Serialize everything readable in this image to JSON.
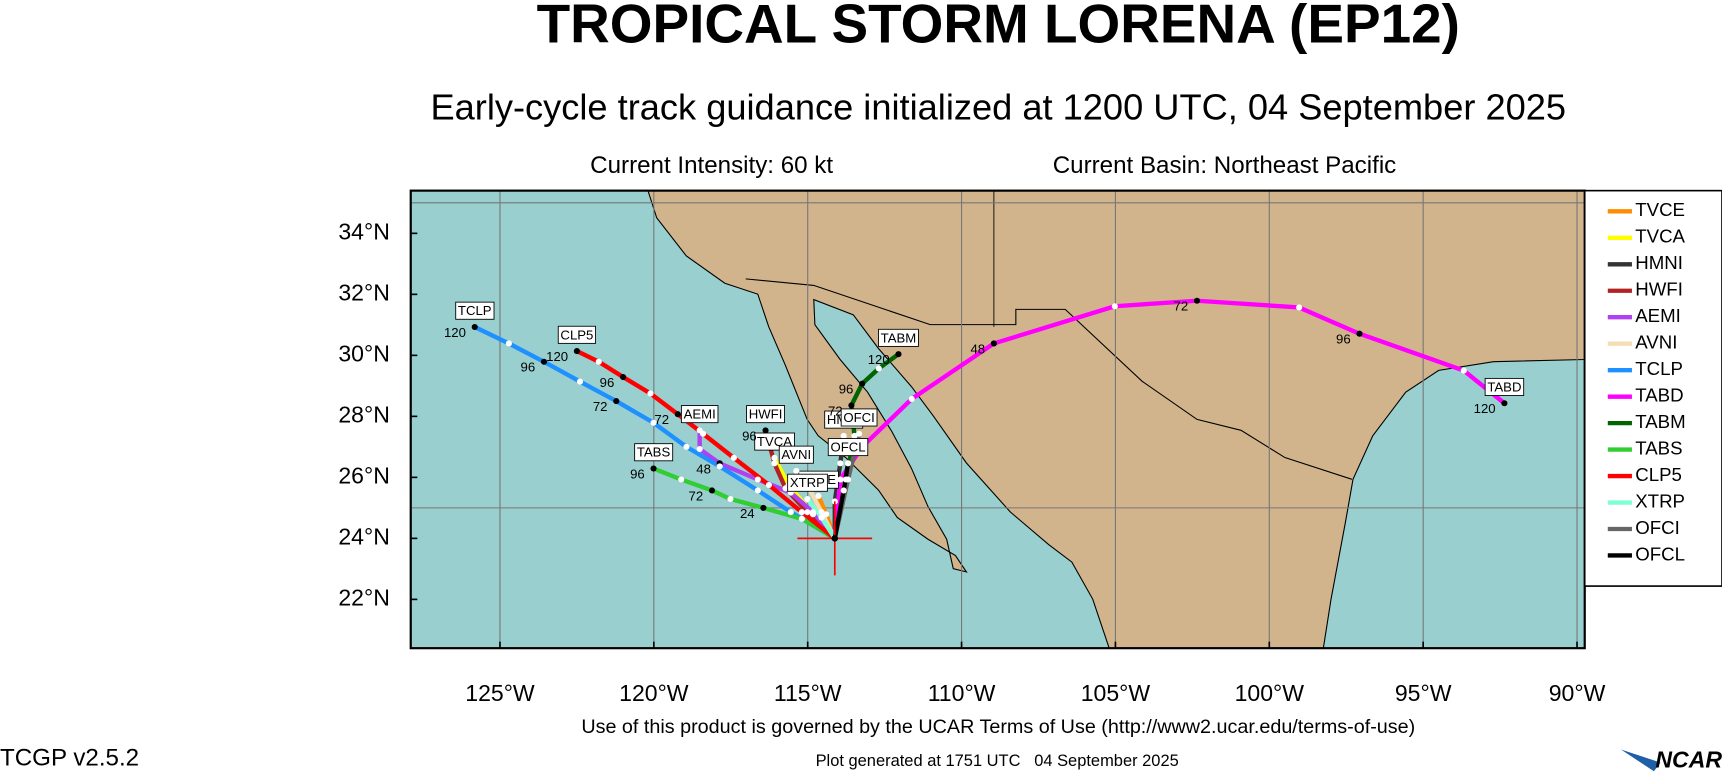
{
  "header": {
    "title": "TROPICAL STORM LORENA (EP12)",
    "subtitle": "Early-cycle track guidance initialized at 1200 UTC, 04 September 2025",
    "intensity": "Current Intensity: 60 kt",
    "basin": "Current Basin: Northeast Pacific"
  },
  "footer": {
    "terms": "Use of this product is governed by the UCAR Terms of Use (http://www2.ucar.edu/terms-of-use)",
    "version": "TCGP v2.5.2",
    "generated": "Plot generated at 1751 UTC   04 September 2025",
    "logo": "NCAR"
  },
  "chart_data": {
    "type": "track-map",
    "xlim": [
      -127.9,
      -89.75
    ],
    "ylim": [
      20.4,
      35.4
    ],
    "xticks": [
      {
        "value": -125,
        "label": "125°W"
      },
      {
        "value": -120,
        "label": "120°W"
      },
      {
        "value": -115,
        "label": "115°W"
      },
      {
        "value": -110,
        "label": "110°W"
      },
      {
        "value": -105,
        "label": "105°W"
      },
      {
        "value": -100,
        "label": "100°W"
      },
      {
        "value": -95,
        "label": "95°W"
      },
      {
        "value": -90,
        "label": "90°W"
      }
    ],
    "yticks": [
      {
        "value": 22,
        "label": "22°N"
      },
      {
        "value": 24,
        "label": "24°N"
      },
      {
        "value": 26,
        "label": "26°N"
      },
      {
        "value": 28,
        "label": "28°N"
      },
      {
        "value": 30,
        "label": "30°N"
      },
      {
        "value": 32,
        "label": "32°N"
      },
      {
        "value": 34,
        "label": "34°N"
      }
    ],
    "lat_grid": [
      25,
      35
    ],
    "grid": true,
    "storm_position": {
      "lon": -114.12,
      "lat": 24.0,
      "color": "#ff0000"
    },
    "legend": "right",
    "series": [
      {
        "name": "TVCE",
        "color": "#ff8c00",
        "lon": [
          -114.12,
          -114.4,
          -114.65
        ],
        "lat": [
          24.0,
          24.79,
          25.39
        ],
        "hour_labels": [
          null,
          null,
          null
        ]
      },
      {
        "name": "TVCA",
        "color": "#ffff00",
        "lon": [
          -114.12,
          -114.83,
          -115.62,
          -116.08
        ],
        "lat": [
          24.0,
          24.79,
          25.75,
          26.64
        ],
        "hour_labels": [
          null,
          null,
          null,
          null
        ]
      },
      {
        "name": "HMNI",
        "color": "#333333",
        "lon": [
          -114.12,
          -114.12,
          -113.94,
          -113.83
        ],
        "lat": [
          24.0,
          25.21,
          26.46,
          27.36
        ],
        "hour_labels": [
          null,
          null,
          null,
          null
        ]
      },
      {
        "name": "HWFI",
        "color": "#b22222",
        "lon": [
          -114.12,
          -115.01,
          -115.72,
          -116.08,
          -116.37
        ],
        "lat": [
          24.0,
          24.86,
          25.64,
          26.46,
          27.54
        ],
        "hour_labels": [
          null,
          null,
          null,
          null,
          96
        ]
      },
      {
        "name": "AEMI",
        "color": "#b040f0",
        "lon": [
          -114.12,
          -114.83,
          -115.55,
          -116.62,
          -117.86,
          -118.51,
          -118.51
        ],
        "lat": [
          24.0,
          24.86,
          25.5,
          25.93,
          26.46,
          26.93,
          27.54
        ],
        "hour_labels": [
          null,
          null,
          null,
          null,
          48,
          null,
          null
        ]
      },
      {
        "name": "AVNI",
        "color": "#f5deb3",
        "lon": [
          -114.12,
          -114.55,
          -115.01,
          -115.37
        ],
        "lat": [
          24.0,
          24.86,
          25.75,
          26.21
        ],
        "hour_labels": [
          null,
          null,
          null,
          null
        ]
      },
      {
        "name": "TCLP",
        "color": "#1e90ff",
        "lon": [
          -114.12,
          -115.55,
          -116.62,
          -117.86,
          -118.94,
          -120.01,
          -121.22,
          -122.4,
          -123.57,
          -124.71,
          -125.82
        ],
        "lat": [
          24.0,
          24.86,
          25.57,
          26.36,
          27.0,
          27.79,
          28.5,
          29.14,
          29.79,
          30.39,
          30.93
        ],
        "hour_labels": [
          null,
          null,
          null,
          null,
          null,
          null,
          72,
          null,
          96,
          null,
          120
        ]
      },
      {
        "name": "TABD",
        "color": "#ff00ff",
        "lon": [
          -114.12,
          -113.94,
          -113.23,
          -111.62,
          -108.95,
          -105.02,
          -102.35,
          -99.03,
          -97.07,
          -93.68,
          -92.36
        ],
        "lat": [
          24.0,
          25.93,
          27.0,
          28.57,
          30.39,
          31.61,
          31.79,
          31.57,
          30.71,
          29.5,
          28.43
        ],
        "hour_labels": [
          null,
          null,
          null,
          null,
          48,
          null,
          72,
          null,
          96,
          null,
          120
        ]
      },
      {
        "name": "TABM",
        "color": "#006400",
        "lon": [
          -114.12,
          -113.76,
          -113.48,
          -113.58,
          -113.23,
          -112.69,
          -112.05
        ],
        "lat": [
          24.0,
          25.93,
          27.36,
          28.36,
          29.07,
          29.57,
          30.04
        ],
        "hour_labels": [
          null,
          null,
          null,
          72,
          96,
          null,
          120
        ]
      },
      {
        "name": "TABS",
        "color": "#32cd32",
        "lon": [
          -114.12,
          -115.19,
          -116.44,
          -117.51,
          -118.11,
          -119.11,
          -120.01
        ],
        "lat": [
          24.0,
          24.64,
          25.0,
          25.29,
          25.57,
          25.93,
          26.29
        ],
        "hour_labels": [
          null,
          null,
          24,
          null,
          72,
          null,
          96
        ]
      },
      {
        "name": "CLP5",
        "color": "#ff0000",
        "lon": [
          -114.12,
          -115.19,
          -116.26,
          -117.4,
          -118.4,
          -119.22,
          -120.11,
          -121.0,
          -121.79,
          -122.5
        ],
        "lat": [
          24.0,
          24.86,
          25.75,
          26.64,
          27.43,
          28.07,
          28.75,
          29.29,
          29.79,
          30.14
        ],
        "hour_labels": [
          null,
          null,
          null,
          null,
          null,
          72,
          null,
          96,
          null,
          120
        ]
      },
      {
        "name": "XTRP",
        "color": "#7fffd4",
        "lon": [
          -114.12,
          -114.55,
          -115.01
        ],
        "lat": [
          24.0,
          24.68,
          25.29
        ],
        "hour_labels": [
          null,
          null,
          null
        ]
      },
      {
        "name": "OFCI",
        "color": "#666666",
        "lon": [
          -114.12,
          -113.69,
          -113.33
        ],
        "lat": [
          24.0,
          25.93,
          27.43
        ],
        "hour_labels": [
          null,
          null,
          null
        ]
      },
      {
        "name": "OFCL",
        "color": "#000000",
        "lon": [
          -114.12,
          -113.83,
          -113.69
        ],
        "lat": [
          24.0,
          25.57,
          26.46
        ],
        "hour_labels": [
          null,
          null,
          null
        ]
      }
    ]
  }
}
